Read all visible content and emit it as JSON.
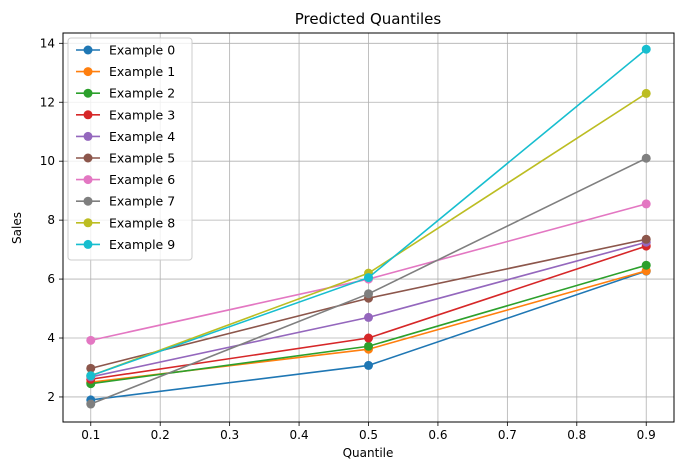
{
  "chart_data": {
    "type": "line",
    "title": "Predicted Quantiles",
    "xlabel": "Quantile",
    "ylabel": "Sales",
    "x": [
      0.1,
      0.5,
      0.9
    ],
    "xlim": [
      0.06,
      0.94
    ],
    "ylim": [
      1.15,
      14.35
    ],
    "xticks": [
      "0.1",
      "0.2",
      "0.3",
      "0.4",
      "0.5",
      "0.6",
      "0.7",
      "0.8",
      "0.9"
    ],
    "yticks": [
      "2",
      "4",
      "6",
      "8",
      "10",
      "12",
      "14"
    ],
    "grid": true,
    "legend_position": "upper left",
    "series": [
      {
        "name": "Example 0",
        "color": "#1f77b4",
        "values": [
          1.9,
          3.07,
          6.27
        ]
      },
      {
        "name": "Example 1",
        "color": "#ff7f0e",
        "values": [
          2.5,
          3.62,
          6.28
        ]
      },
      {
        "name": "Example 2",
        "color": "#2ca02c",
        "values": [
          2.45,
          3.72,
          6.47
        ]
      },
      {
        "name": "Example 3",
        "color": "#d62728",
        "values": [
          2.6,
          4.0,
          7.12
        ]
      },
      {
        "name": "Example 4",
        "color": "#9467bd",
        "values": [
          2.68,
          4.7,
          7.25
        ]
      },
      {
        "name": "Example 5",
        "color": "#8c564b",
        "values": [
          2.97,
          5.35,
          7.35
        ]
      },
      {
        "name": "Example 6",
        "color": "#e377c2",
        "values": [
          3.92,
          6.0,
          8.55
        ]
      },
      {
        "name": "Example 7",
        "color": "#7f7f7f",
        "values": [
          1.76,
          5.5,
          10.1
        ]
      },
      {
        "name": "Example 8",
        "color": "#bcbd22",
        "values": [
          2.72,
          6.2,
          12.3
        ]
      },
      {
        "name": "Example 9",
        "color": "#17becf",
        "values": [
          2.72,
          6.05,
          13.8
        ]
      }
    ]
  }
}
